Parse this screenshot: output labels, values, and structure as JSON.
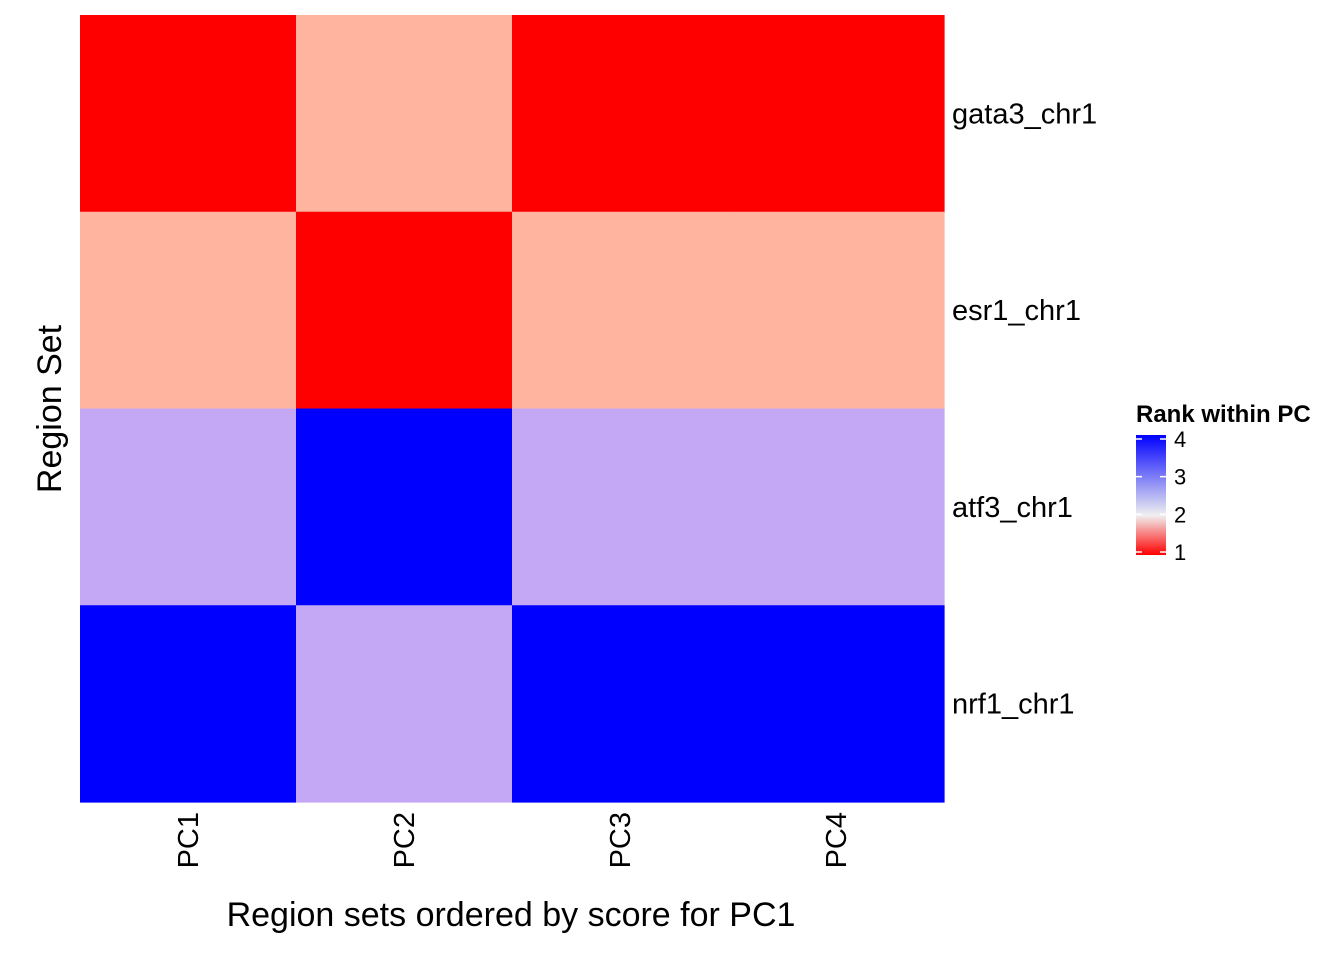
{
  "chart_data": {
    "type": "heatmap",
    "title": "",
    "xlabel": "Region sets ordered by score for PC1",
    "ylabel": "Region Set",
    "x": [
      "PC1",
      "PC2",
      "PC3",
      "PC4"
    ],
    "y": [
      "gata3_chr1",
      "esr1_chr1",
      "atf3_chr1",
      "nrf1_chr1"
    ],
    "values": [
      [
        1,
        2,
        1,
        1
      ],
      [
        2,
        1,
        2,
        2
      ],
      [
        3,
        4,
        3,
        3
      ],
      [
        4,
        3,
        4,
        4
      ]
    ],
    "grid": false,
    "legend": {
      "title": "Rank within PC",
      "position": "right",
      "ticks": [
        1,
        2,
        3,
        4
      ],
      "range": [
        1,
        4
      ],
      "low_color": "#ff0000",
      "mid_color": "#f0f0f0",
      "high_color": "#0000ff"
    },
    "cell_colors": {
      "1": "#ff0000",
      "2": "#ffb4a0",
      "3": "#c4a8f5",
      "4": "#0000ff"
    }
  }
}
